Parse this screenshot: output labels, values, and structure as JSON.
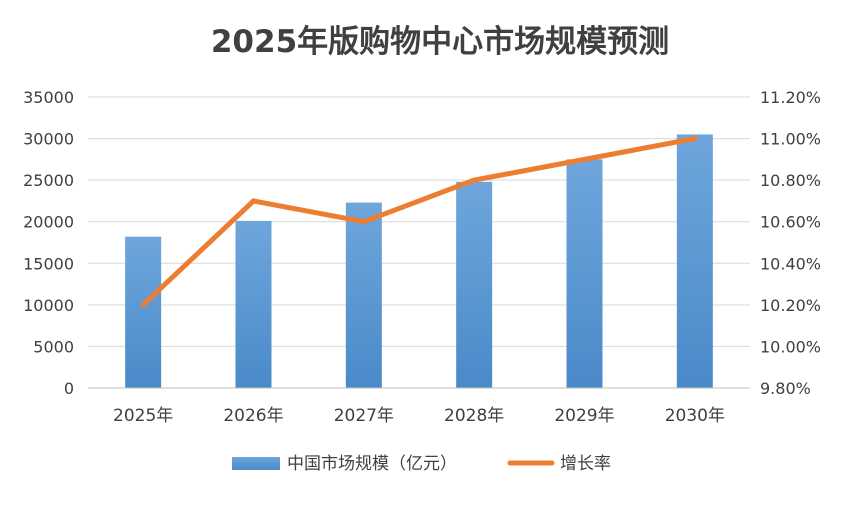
{
  "chart_data": {
    "type": "bar",
    "title": "2025年版购物中心市场规模预测",
    "categories": [
      "2025年",
      "2026年",
      "2027年",
      "2028年",
      "2029年",
      "2030年"
    ],
    "series": [
      {
        "name": "中国市场规模（亿元）",
        "type": "bar",
        "axis": "left",
        "values": [
          18200,
          20100,
          22300,
          24800,
          27500,
          30500
        ]
      },
      {
        "name": "增长率",
        "type": "line",
        "axis": "right",
        "values": [
          10.2,
          10.7,
          10.6,
          10.8,
          10.9,
          11.0
        ]
      }
    ],
    "y_left": {
      "min": 0,
      "max": 35000,
      "ticks": [
        "0",
        "5000",
        "10000",
        "15000",
        "20000",
        "25000",
        "30000",
        "35000"
      ]
    },
    "y_right": {
      "min": 9.8,
      "max": 11.2,
      "ticks": [
        "9.80%",
        "10.00%",
        "10.20%",
        "10.40%",
        "10.60%",
        "10.80%",
        "11.00%",
        "11.20%"
      ]
    },
    "grid": true,
    "legend_position": "bottom",
    "colors": {
      "bar": "#5b9bd5",
      "line": "#ed7d31",
      "grid": "#d9d9d9",
      "text": "#404040"
    }
  }
}
